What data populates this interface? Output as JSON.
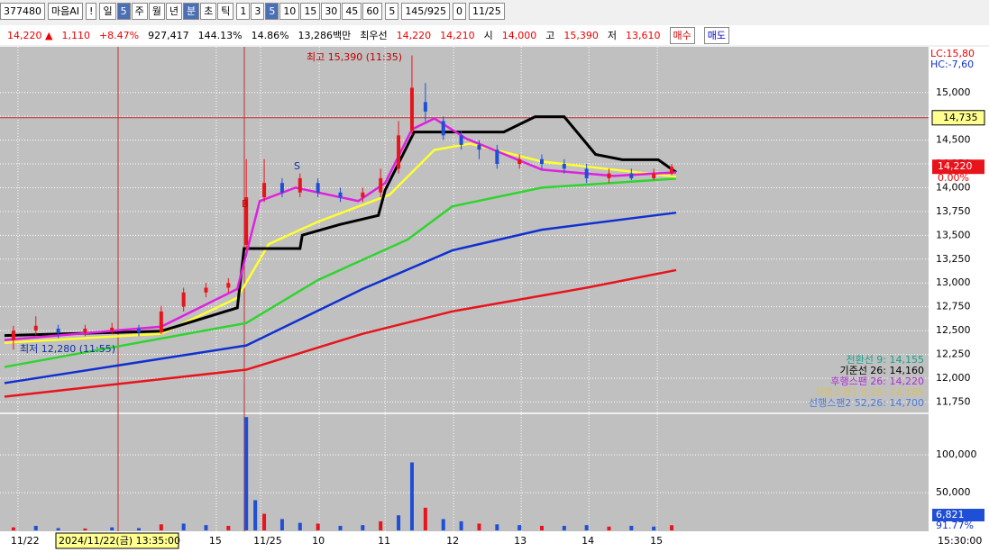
{
  "toolbar": {
    "code": "377480",
    "name": "마음AI",
    "alert": "!",
    "period": [
      "일",
      "5",
      "주",
      "월",
      "년",
      "분",
      "초",
      "틱"
    ],
    "minutes": [
      "1",
      "3",
      "5",
      "10",
      "15",
      "30",
      "45",
      "60"
    ],
    "count": "5",
    "range": "145/925",
    "check": "0",
    "date": "11/25"
  },
  "quote": {
    "price": "14,220 ▲",
    "change": "1,110",
    "rate": "+8.47%",
    "volume": "927,417",
    "vol_ratio": "144.13%",
    "turnover": "14.86%",
    "amount": "13,286백만",
    "best_label": "최우선",
    "ask": "14,220",
    "bid": "14,210",
    "open_label": "시",
    "open": "14,000",
    "high_label": "고",
    "high": "15,390",
    "low_label": "저",
    "low": "13,610",
    "buy": "매수",
    "sell": "매도"
  },
  "chart_data": {
    "type": "candlestick",
    "xlim": [
      0,
      150
    ],
    "ylim": [
      11640,
      15480
    ],
    "xticks": [
      {
        "value": 3,
        "label": "11/22"
      },
      {
        "value": 47.3,
        "label": "15"
      },
      {
        "value": 57.2,
        "label": "11/25"
      },
      {
        "value": 70.3,
        "label": "10"
      },
      {
        "value": 85,
        "label": "11"
      },
      {
        "value": 100.3,
        "label": "12"
      },
      {
        "value": 115.4,
        "label": "13"
      },
      {
        "value": 130.5,
        "label": "14"
      },
      {
        "value": 145.8,
        "label": "15"
      }
    ],
    "yticks": [
      {
        "value": 15000,
        "label": "15,000"
      },
      {
        "value": 14750,
        "label": "14,750"
      },
      {
        "value": 14500,
        "label": "14,500"
      },
      {
        "value": 14250,
        "label": "14,250"
      },
      {
        "value": 14000,
        "label": "14,000"
      },
      {
        "value": 13750,
        "label": "13,750"
      },
      {
        "value": 13500,
        "label": "13,500"
      },
      {
        "value": 13250,
        "label": "13,250"
      },
      {
        "value": 13000,
        "label": "13,000"
      },
      {
        "value": 12750,
        "label": "12,750"
      },
      {
        "value": 12500,
        "label": "12,500"
      },
      {
        "value": 12250,
        "label": "12,250"
      },
      {
        "value": 12000,
        "label": "12,000"
      },
      {
        "value": 11750,
        "label": "11,750"
      }
    ],
    "up_color": "#e8141c",
    "down_color": "#1f4fd6",
    "candles": [
      {
        "x": 2,
        "open": 12400,
        "close": 12500,
        "high": 12550,
        "low": 12300
      },
      {
        "x": 7,
        "open": 12500,
        "close": 12550,
        "high": 12650,
        "low": 12450
      },
      {
        "x": 12,
        "open": 12520,
        "close": 12480,
        "high": 12560,
        "low": 12420
      },
      {
        "x": 18,
        "open": 12480,
        "close": 12520,
        "high": 12560,
        "low": 12440
      },
      {
        "x": 24,
        "open": 12500,
        "close": 12530,
        "high": 12580,
        "low": 12460
      },
      {
        "x": 30,
        "open": 12520,
        "close": 12480,
        "high": 12560,
        "low": 12440
      },
      {
        "x": 35,
        "open": 12480,
        "close": 12700,
        "high": 12760,
        "low": 12460
      },
      {
        "x": 40,
        "open": 12750,
        "close": 12900,
        "high": 12950,
        "low": 12700
      },
      {
        "x": 45,
        "open": 12900,
        "close": 12950,
        "high": 13000,
        "low": 12850
      },
      {
        "x": 50,
        "open": 12950,
        "close": 13000,
        "high": 13050,
        "low": 12900
      },
      {
        "x": 54,
        "open": 13400,
        "close": 13900,
        "high": 14300,
        "low": 13350
      },
      {
        "x": 58,
        "open": 13900,
        "close": 14050,
        "high": 14300,
        "low": 13850
      },
      {
        "x": 62,
        "open": 14050,
        "close": 13950,
        "high": 14100,
        "low": 13900
      },
      {
        "x": 66,
        "open": 13950,
        "close": 14100,
        "high": 14150,
        "low": 13900
      },
      {
        "x": 70,
        "open": 14050,
        "close": 13950,
        "high": 14100,
        "low": 13900
      },
      {
        "x": 75,
        "open": 13950,
        "close": 13900,
        "high": 14000,
        "low": 13850
      },
      {
        "x": 80,
        "open": 13900,
        "close": 13950,
        "high": 14000,
        "low": 13850
      },
      {
        "x": 84,
        "open": 13950,
        "close": 14100,
        "high": 14200,
        "low": 13900
      },
      {
        "x": 88,
        "open": 14200,
        "close": 14550,
        "high": 14700,
        "low": 14150
      },
      {
        "x": 91,
        "open": 14600,
        "close": 15050,
        "high": 15390,
        "low": 14550
      },
      {
        "x": 94,
        "open": 14900,
        "close": 14800,
        "high": 15100,
        "low": 14700
      },
      {
        "x": 98,
        "open": 14700,
        "close": 14550,
        "high": 14750,
        "low": 14500
      },
      {
        "x": 102,
        "open": 14550,
        "close": 14450,
        "high": 14600,
        "low": 14400
      },
      {
        "x": 106,
        "open": 14450,
        "close": 14400,
        "high": 14500,
        "low": 14300
      },
      {
        "x": 110,
        "open": 14400,
        "close": 14250,
        "high": 14450,
        "low": 14200
      },
      {
        "x": 115,
        "open": 14250,
        "close": 14300,
        "high": 14350,
        "low": 14200
      },
      {
        "x": 120,
        "open": 14300,
        "close": 14250,
        "high": 14350,
        "low": 14200
      },
      {
        "x": 125,
        "open": 14250,
        "close": 14200,
        "high": 14300,
        "low": 14150
      },
      {
        "x": 130,
        "open": 14200,
        "close": 14100,
        "high": 14250,
        "low": 14050
      },
      {
        "x": 135,
        "open": 14100,
        "close": 14150,
        "high": 14200,
        "low": 14050
      },
      {
        "x": 140,
        "open": 14150,
        "close": 14100,
        "high": 14200,
        "low": 14080
      },
      {
        "x": 145,
        "open": 14100,
        "close": 14150,
        "high": 14200,
        "low": 14080
      },
      {
        "x": 149,
        "open": 14150,
        "close": 14220,
        "high": 14250,
        "low": 14130
      }
    ],
    "series": [
      {
        "color": "#e8141c",
        "x": [
          0,
          54,
          80,
          100,
          130,
          150
        ],
        "values": [
          11806,
          12089,
          12466,
          12701,
          12950,
          13135
        ]
      },
      {
        "color": "#1030d0",
        "x": [
          0,
          54,
          80,
          100,
          120,
          150
        ],
        "values": [
          11948,
          12343,
          12937,
          13342,
          13559,
          13738
        ]
      },
      {
        "color": "#2fd42f",
        "x": [
          0,
          54,
          70,
          90,
          100,
          120,
          150
        ],
        "values": [
          12117,
          12579,
          13031,
          13455,
          13804,
          14001,
          14096
        ]
      },
      {
        "color": "#ffff30",
        "x": [
          0,
          35,
          52,
          59,
          70,
          86,
          96,
          104,
          120,
          150
        ],
        "values": [
          12372,
          12466,
          12843,
          13408,
          13643,
          13926,
          14397,
          14463,
          14275,
          14115
        ]
      },
      {
        "color": "#000000",
        "x": [
          0,
          35,
          52,
          53.5,
          66,
          66.5,
          75,
          83.5,
          85,
          91.5,
          111.5,
          118.5,
          125,
          132,
          138,
          146,
          150
        ],
        "values": [
          12447,
          12494,
          12739,
          13361,
          13361,
          13502,
          13615,
          13709,
          13974,
          14585,
          14585,
          14746,
          14746,
          14350,
          14294,
          14294,
          14162
        ]
      },
      {
        "color": "#e020e0",
        "x": [
          0,
          35,
          52,
          57,
          65,
          79,
          85,
          91,
          96,
          103,
          120,
          136,
          150
        ],
        "values": [
          12400,
          12541,
          12937,
          13860,
          14001,
          13860,
          14049,
          14614,
          14727,
          14519,
          14190,
          14124,
          14162
        ]
      }
    ],
    "annotations": {
      "high": "최고 15,390 (11:35)",
      "low": "최저 12,280 (11:55)",
      "buy": "B",
      "sell": "S"
    },
    "cursor": {
      "price": 14735,
      "price_label": "14,735",
      "time": "2024/11/22(금) 13:35:00",
      "end_time": "15:30:00"
    },
    "right": {
      "lc": "LC:15,80",
      "hc": "HC:-7,60",
      "last": "14,220",
      "last_rate": "0.00%"
    },
    "legend": [
      {
        "text": "전환선 9: 14,155",
        "color": "#19a08c"
      },
      {
        "text": "기준선 26: 14,160",
        "color": "#000000"
      },
      {
        "text": "후행스팬 26: 14,220",
        "color": "#b030d0"
      },
      {
        "text": "선행스팬1 9,26: 14,185",
        "color": "#d8c060"
      },
      {
        "text": "선행스팬2 52,26: 14,700",
        "color": "#4a7ad8"
      }
    ],
    "volume": {
      "ylim": [
        0,
        155000
      ],
      "yticks": [
        {
          "value": 100000,
          "label": "100,000"
        },
        {
          "value": 50000,
          "label": "50,000"
        }
      ],
      "last": "6,821",
      "ratio": "91.77%",
      "x": [
        2,
        7,
        12,
        18,
        24,
        30,
        35,
        40,
        45,
        50,
        54,
        56,
        58,
        62,
        66,
        70,
        75,
        80,
        84,
        88,
        91,
        94,
        98,
        102,
        106,
        110,
        115,
        120,
        125,
        130,
        135,
        140,
        145,
        149
      ],
      "values": [
        4000,
        6000,
        3000,
        2500,
        4000,
        3000,
        8000,
        9000,
        7000,
        6000,
        150000,
        40000,
        22000,
        15000,
        10000,
        9000,
        6000,
        7000,
        12000,
        20000,
        90000,
        30000,
        15000,
        12000,
        9000,
        8000,
        7000,
        6000,
        6000,
        7000,
        5000,
        6000,
        5000,
        6821
      ]
    }
  }
}
